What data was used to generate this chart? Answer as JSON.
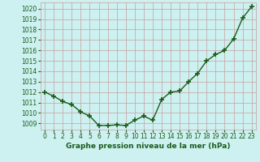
{
  "x": [
    0,
    1,
    2,
    3,
    4,
    5,
    6,
    7,
    8,
    9,
    10,
    11,
    12,
    13,
    14,
    15,
    16,
    17,
    18,
    19,
    20,
    21,
    22,
    23
  ],
  "y": [
    1012.0,
    1011.6,
    1011.1,
    1010.8,
    1010.1,
    1009.7,
    1008.8,
    1008.8,
    1008.85,
    1008.8,
    1009.3,
    1009.7,
    1009.3,
    1011.3,
    1012.0,
    1012.1,
    1013.0,
    1013.8,
    1015.0,
    1015.6,
    1016.0,
    1017.1,
    1019.1,
    1020.2
  ],
  "line_color": "#1a5c1a",
  "marker": "+",
  "marker_size": 5,
  "marker_lw": 1.2,
  "line_width": 1.0,
  "bg_color": "#cdf0f0",
  "grid_color": "#c8a0a0",
  "xlabel": "Graphe pression niveau de la mer (hPa)",
  "xlabel_color": "#1a5c1a",
  "tick_color": "#1a5c1a",
  "ylim": [
    1008.4,
    1020.6
  ],
  "yticks": [
    1009,
    1010,
    1011,
    1012,
    1013,
    1014,
    1015,
    1016,
    1017,
    1018,
    1019,
    1020
  ],
  "xlim": [
    -0.5,
    23.5
  ],
  "xticks": [
    0,
    1,
    2,
    3,
    4,
    5,
    6,
    7,
    8,
    9,
    10,
    11,
    12,
    13,
    14,
    15,
    16,
    17,
    18,
    19,
    20,
    21,
    22,
    23
  ],
  "tick_fontsize": 5.5,
  "xlabel_fontsize": 6.5,
  "xlabel_fontweight": "bold"
}
